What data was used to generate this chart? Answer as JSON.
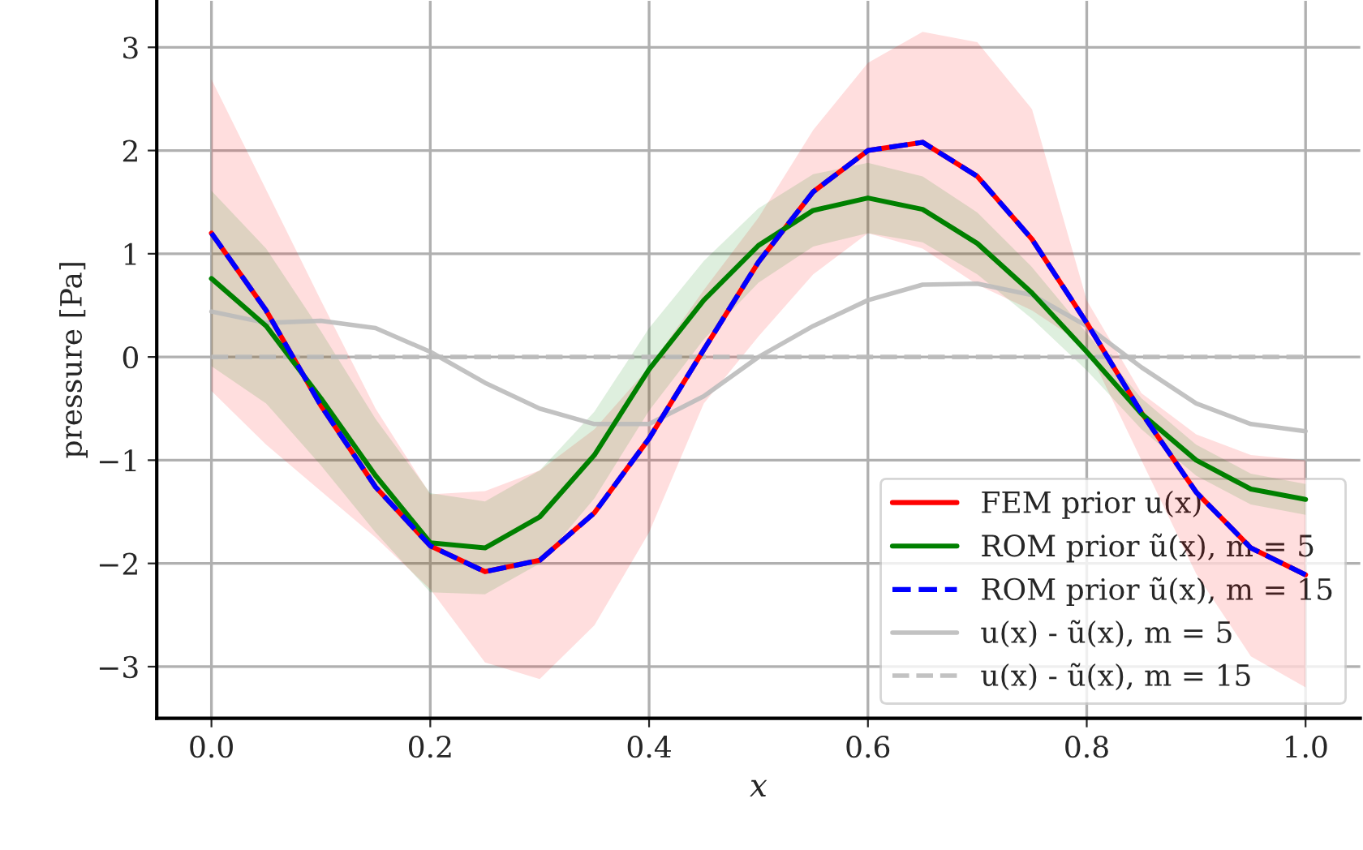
{
  "chart_data": {
    "type": "line",
    "xlabel": "x",
    "ylabel": "pressure [Pa]",
    "x": [
      0,
      0.05,
      0.1,
      0.15,
      0.2,
      0.25,
      0.3,
      0.35,
      0.4,
      0.45,
      0.5,
      0.55,
      0.6,
      0.65,
      0.7,
      0.75,
      0.8,
      0.85,
      0.9,
      0.95,
      1.0
    ],
    "series": [
      {
        "name": "FEM prior u(x)",
        "color": "#ff0000",
        "line_style": "solid",
        "values": [
          1.2,
          0.45,
          -0.47,
          -1.26,
          -1.83,
          -2.08,
          -1.97,
          -1.51,
          -0.79,
          0.07,
          0.92,
          1.6,
          2.0,
          2.08,
          1.75,
          1.14,
          0.33,
          -0.54,
          -1.31,
          -1.85,
          -2.11
        ],
        "upper": [
          2.69,
          1.62,
          0.55,
          -0.5,
          -1.33,
          -1.3,
          -1.1,
          -0.7,
          -0.1,
          0.65,
          1.35,
          2.2,
          2.85,
          3.15,
          3.05,
          2.4,
          0.55,
          -0.35,
          -0.75,
          -0.95,
          -1.0
        ],
        "lower": [
          -0.33,
          -0.85,
          -1.3,
          -1.75,
          -2.25,
          -2.96,
          -3.12,
          -2.6,
          -1.7,
          -0.45,
          0.2,
          0.8,
          1.2,
          1.05,
          0.7,
          0.45,
          0.1,
          -1.0,
          -2.1,
          -2.9,
          -3.2
        ]
      },
      {
        "name": "ROM prior ũ(x), m = 5",
        "color": "#008000",
        "line_style": "solid",
        "values": [
          0.76,
          0.3,
          -0.4,
          -1.15,
          -1.8,
          -1.85,
          -1.55,
          -0.95,
          -0.12,
          0.55,
          1.08,
          1.42,
          1.54,
          1.43,
          1.1,
          0.62,
          0.05,
          -0.55,
          -1.0,
          -1.28,
          -1.38
        ],
        "upper": [
          1.61,
          1.05,
          0.25,
          -0.6,
          -1.32,
          -1.4,
          -1.1,
          -0.53,
          0.28,
          0.93,
          1.44,
          1.77,
          1.88,
          1.75,
          1.4,
          0.87,
          0.23,
          -0.4,
          -0.85,
          -1.13,
          -1.23
        ],
        "lower": [
          -0.09,
          -0.45,
          -1.05,
          -1.7,
          -2.28,
          -2.3,
          -2.0,
          -1.37,
          -0.52,
          0.17,
          0.72,
          1.07,
          1.2,
          1.11,
          0.8,
          0.37,
          -0.13,
          -0.7,
          -1.15,
          -1.43,
          -1.53
        ]
      },
      {
        "name": "ROM prior ũ(x), m = 15",
        "color": "#0000ff",
        "line_style": "dashed",
        "values": [
          1.2,
          0.45,
          -0.47,
          -1.26,
          -1.83,
          -2.08,
          -1.97,
          -1.51,
          -0.79,
          0.07,
          0.92,
          1.6,
          2.0,
          2.08,
          1.75,
          1.14,
          0.33,
          -0.54,
          -1.31,
          -1.85,
          -2.11
        ]
      },
      {
        "name": "u(x) - ũ(x), m = 5",
        "color": "#bbbbbb",
        "line_style": "solid",
        "values": [
          0.44,
          0.33,
          0.35,
          0.28,
          0.05,
          -0.25,
          -0.5,
          -0.65,
          -0.65,
          -0.38,
          0.0,
          0.3,
          0.55,
          0.7,
          0.71,
          0.6,
          0.3,
          -0.1,
          -0.45,
          -0.65,
          -0.72
        ]
      },
      {
        "name": "u(x) - ũ(x), m = 15",
        "color": "#bbbbbb",
        "line_style": "dashed",
        "values": [
          0,
          0,
          0,
          0,
          0,
          0,
          0,
          0,
          0,
          0,
          0,
          0,
          0,
          0,
          0,
          0,
          0,
          0,
          0,
          0,
          0
        ]
      }
    ],
    "xlim": [
      -0.05,
      1.05
    ],
    "ylim": [
      -3.5,
      3.45
    ],
    "xticks": [
      {
        "value": 0,
        "label": "0.0"
      },
      {
        "value": 0.2,
        "label": "0.2"
      },
      {
        "value": 0.4,
        "label": "0.4"
      },
      {
        "value": 0.6,
        "label": "0.6"
      },
      {
        "value": 0.8,
        "label": "0.8"
      },
      {
        "value": 1.0,
        "label": "1.0"
      }
    ],
    "yticks": [
      {
        "value": -3,
        "label": "−3"
      },
      {
        "value": -2,
        "label": "−2"
      },
      {
        "value": -1,
        "label": "−1"
      },
      0,
      1,
      2,
      3
    ],
    "grid": true,
    "legend": "bottom right"
  }
}
